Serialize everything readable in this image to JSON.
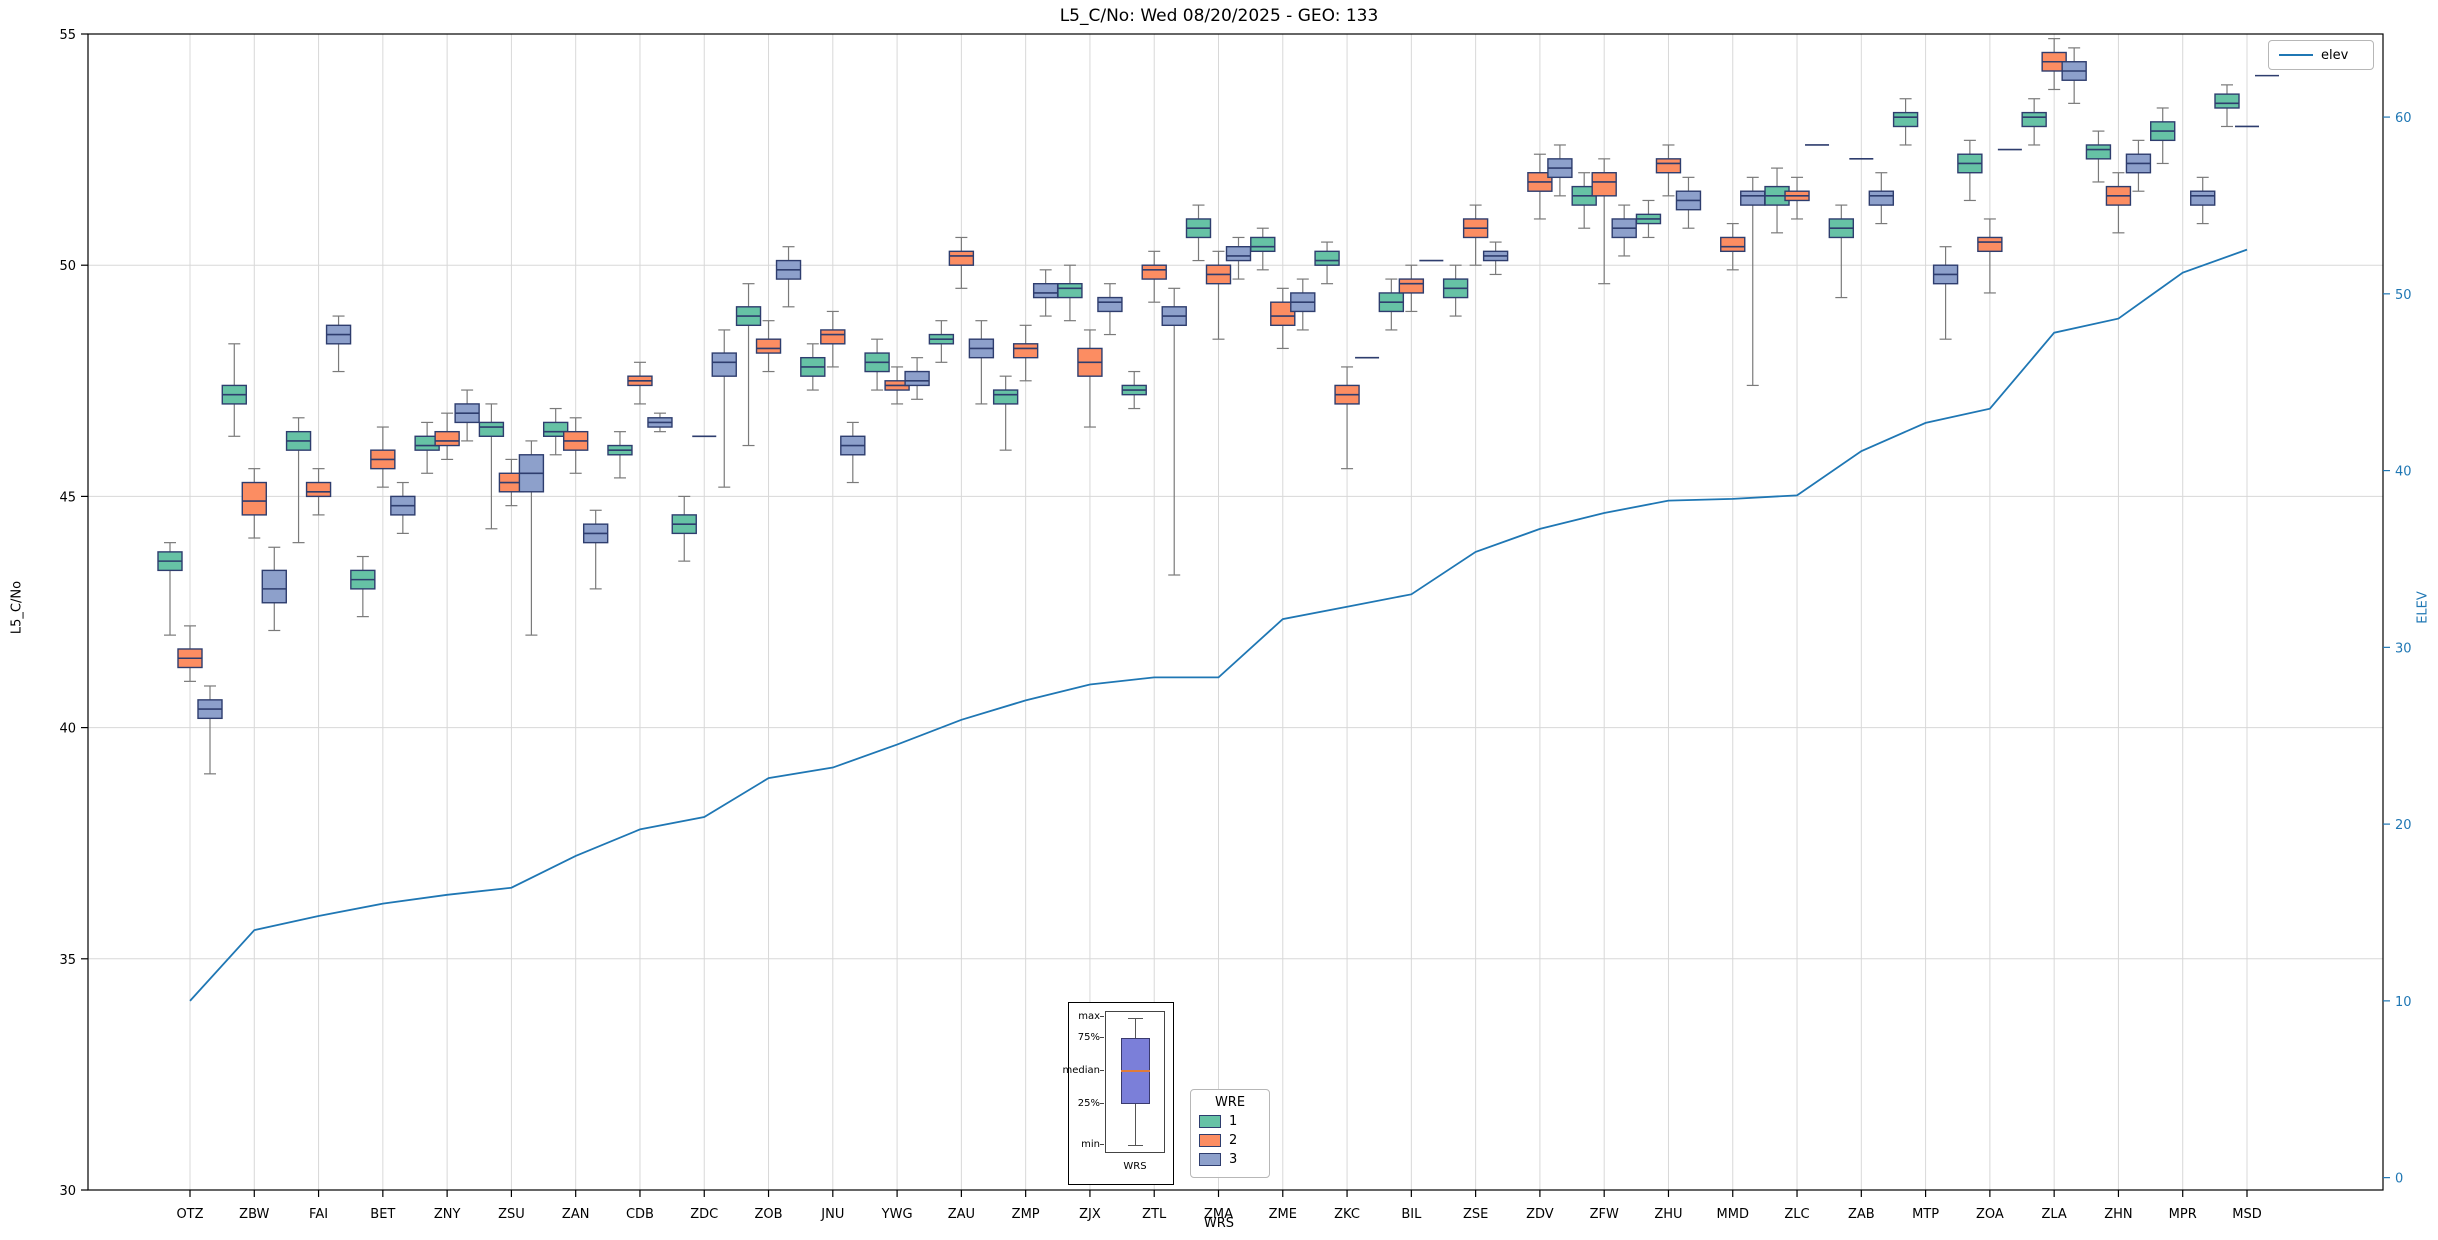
{
  "chart_data": {
    "type": "boxplot+line",
    "title": "L5_C/No: Wed 08/20/2025 - GEO: 133",
    "xlabel": "WRS",
    "ylabel": "L5_C/No",
    "y2label": "ELEV",
    "ylim": [
      30,
      55
    ],
    "y2lim": [
      -0.7,
      64.7
    ],
    "y_ticks": [
      30,
      35,
      40,
      45,
      50,
      55
    ],
    "y2_ticks": [
      0,
      10,
      20,
      30,
      40,
      50,
      60
    ],
    "grid": true,
    "legend_wre_title": "WRE",
    "box_edge_color": "#2e3d6e",
    "whisker_color": "#7a7a7a",
    "grid_color": "#d8d8d8",
    "wre_series": [
      {
        "name": "1",
        "color": "#66c2a5"
      },
      {
        "name": "2",
        "color": "#fc8d62"
      },
      {
        "name": "3",
        "color": "#8da0cb"
      }
    ],
    "categories": [
      "OTZ",
      "ZBW",
      "FAI",
      "BET",
      "ZNY",
      "ZSU",
      "ZAN",
      "CDB",
      "ZDC",
      "ZOB",
      "JNU",
      "YWG",
      "ZAU",
      "ZMP",
      "ZJX",
      "ZTL",
      "ZMA",
      "ZME",
      "ZKC",
      "BIL",
      "ZSE",
      "ZDV",
      "ZFW",
      "ZHU",
      "MMD",
      "ZLC",
      "ZAB",
      "MTP",
      "ZOA",
      "ZLA",
      "ZHN",
      "MPR",
      "MSD"
    ],
    "boxes_note": "per category: [WRE1, WRE2, WRE3]; each box = [whisker_low, q1, median, q3, whisker_high] in L5 C/No dB; null = not present; lo==hi means flat mark",
    "boxes": [
      [
        [
          42.0,
          43.4,
          43.6,
          43.8,
          44.0
        ],
        [
          41.0,
          41.3,
          41.5,
          41.7,
          42.2
        ],
        [
          39.0,
          40.2,
          40.4,
          40.6,
          40.9
        ]
      ],
      [
        [
          46.3,
          47.0,
          47.2,
          47.4,
          48.3
        ],
        [
          44.1,
          44.6,
          44.9,
          45.3,
          45.6
        ],
        [
          42.1,
          42.7,
          43.0,
          43.4,
          43.9
        ]
      ],
      [
        [
          44.0,
          46.0,
          46.2,
          46.4,
          46.7
        ],
        [
          44.6,
          45.0,
          45.1,
          45.3,
          45.6
        ],
        [
          47.7,
          48.3,
          48.5,
          48.7,
          48.9
        ]
      ],
      [
        [
          42.4,
          43.0,
          43.2,
          43.4,
          43.7
        ],
        [
          45.2,
          45.6,
          45.8,
          46.0,
          46.5
        ],
        [
          44.2,
          44.6,
          44.8,
          45.0,
          45.3
        ]
      ],
      [
        [
          45.5,
          46.0,
          46.1,
          46.3,
          46.6
        ],
        [
          45.8,
          46.1,
          46.2,
          46.4,
          46.8
        ],
        [
          46.2,
          46.6,
          46.8,
          47.0,
          47.3
        ]
      ],
      [
        [
          44.3,
          46.3,
          46.5,
          46.6,
          47.0
        ],
        [
          44.8,
          45.1,
          45.3,
          45.5,
          45.8
        ],
        [
          42.0,
          45.1,
          45.5,
          45.9,
          46.2
        ]
      ],
      [
        [
          45.9,
          46.3,
          46.4,
          46.6,
          46.9
        ],
        [
          45.5,
          46.0,
          46.2,
          46.4,
          46.7
        ],
        [
          43.0,
          44.0,
          44.2,
          44.4,
          44.7
        ]
      ],
      [
        [
          45.4,
          45.9,
          46.0,
          46.1,
          46.4
        ],
        [
          47.0,
          47.4,
          47.5,
          47.6,
          47.9
        ],
        [
          46.4,
          46.5,
          46.6,
          46.7,
          46.8
        ]
      ],
      [
        [
          43.6,
          44.2,
          44.4,
          44.6,
          45.0
        ],
        [
          46.3,
          46.3,
          46.3,
          46.3,
          46.3
        ],
        [
          45.2,
          47.6,
          47.9,
          48.1,
          48.6
        ]
      ],
      [
        [
          46.1,
          48.7,
          48.9,
          49.1,
          49.6
        ],
        [
          47.7,
          48.1,
          48.2,
          48.4,
          48.8
        ],
        [
          49.1,
          49.7,
          49.9,
          50.1,
          50.4
        ]
      ],
      [
        [
          47.3,
          47.6,
          47.8,
          48.0,
          48.3
        ],
        [
          47.8,
          48.3,
          48.5,
          48.6,
          49.0
        ],
        [
          45.3,
          45.9,
          46.1,
          46.3,
          46.6
        ]
      ],
      [
        [
          47.3,
          47.7,
          47.9,
          48.1,
          48.4
        ],
        [
          47.0,
          47.3,
          47.4,
          47.5,
          47.8
        ],
        [
          47.1,
          47.4,
          47.5,
          47.7,
          48.0
        ]
      ],
      [
        [
          47.9,
          48.3,
          48.4,
          48.5,
          48.8
        ],
        [
          49.5,
          50.0,
          50.2,
          50.3,
          50.6
        ],
        [
          47.0,
          48.0,
          48.2,
          48.4,
          48.8
        ]
      ],
      [
        [
          46.0,
          47.0,
          47.2,
          47.3,
          47.6
        ],
        [
          47.5,
          48.0,
          48.2,
          48.3,
          48.7
        ],
        [
          48.9,
          49.3,
          49.4,
          49.6,
          49.9
        ]
      ],
      [
        [
          48.8,
          49.3,
          49.5,
          49.6,
          50.0
        ],
        [
          46.5,
          47.6,
          47.9,
          48.2,
          48.6
        ],
        [
          48.5,
          49.0,
          49.2,
          49.3,
          49.6
        ]
      ],
      [
        [
          46.9,
          47.2,
          47.3,
          47.4,
          47.7
        ],
        [
          49.2,
          49.7,
          49.9,
          50.0,
          50.3
        ],
        [
          43.3,
          48.7,
          48.9,
          49.1,
          49.5
        ]
      ],
      [
        [
          50.1,
          50.6,
          50.8,
          51.0,
          51.3
        ],
        [
          48.4,
          49.6,
          49.8,
          50.0,
          50.3
        ],
        [
          49.7,
          50.1,
          50.2,
          50.4,
          50.6
        ]
      ],
      [
        [
          49.9,
          50.3,
          50.4,
          50.6,
          50.8
        ],
        [
          48.2,
          48.7,
          48.9,
          49.2,
          49.5
        ],
        [
          48.6,
          49.0,
          49.2,
          49.4,
          49.7
        ]
      ],
      [
        [
          49.6,
          50.0,
          50.1,
          50.3,
          50.5
        ],
        [
          45.6,
          47.0,
          47.2,
          47.4,
          47.8
        ],
        [
          48.0,
          48.0,
          48.0,
          48.0,
          48.0
        ]
      ],
      [
        [
          48.6,
          49.0,
          49.2,
          49.4,
          49.7
        ],
        [
          49.0,
          49.4,
          49.6,
          49.7,
          50.0
        ],
        [
          50.1,
          50.1,
          50.1,
          50.1,
          50.1
        ]
      ],
      [
        [
          48.9,
          49.3,
          49.5,
          49.7,
          50.0
        ],
        [
          50.0,
          50.6,
          50.8,
          51.0,
          51.3
        ],
        [
          49.8,
          50.1,
          50.2,
          50.3,
          50.5
        ]
      ],
      [
        null,
        [
          51.0,
          51.6,
          51.8,
          52.0,
          52.4
        ],
        [
          51.5,
          51.9,
          52.1,
          52.3,
          52.6
        ]
      ],
      [
        [
          50.8,
          51.3,
          51.5,
          51.7,
          52.0
        ],
        [
          49.6,
          51.5,
          51.8,
          52.0,
          52.3
        ],
        [
          50.2,
          50.6,
          50.8,
          51.0,
          51.3
        ]
      ],
      [
        [
          50.6,
          50.9,
          51.0,
          51.1,
          51.4
        ],
        [
          51.5,
          52.0,
          52.2,
          52.3,
          52.6
        ],
        [
          50.8,
          51.2,
          51.4,
          51.6,
          51.9
        ]
      ],
      [
        null,
        [
          49.9,
          50.3,
          50.4,
          50.6,
          50.9
        ],
        [
          47.4,
          51.3,
          51.5,
          51.6,
          51.9
        ]
      ],
      [
        [
          50.7,
          51.3,
          51.5,
          51.7,
          52.1
        ],
        [
          51.0,
          51.4,
          51.5,
          51.6,
          51.9
        ],
        [
          52.6,
          52.6,
          52.6,
          52.6,
          52.6
        ]
      ],
      [
        [
          49.3,
          50.6,
          50.8,
          51.0,
          51.3
        ],
        [
          52.3,
          52.3,
          52.3,
          52.3,
          52.3
        ],
        [
          50.9,
          51.3,
          51.5,
          51.6,
          52.0
        ]
      ],
      [
        [
          52.6,
          53.0,
          53.2,
          53.3,
          53.6
        ],
        null,
        [
          48.4,
          49.6,
          49.8,
          50.0,
          50.4
        ]
      ],
      [
        [
          51.4,
          52.0,
          52.2,
          52.4,
          52.7
        ],
        [
          49.4,
          50.3,
          50.5,
          50.6,
          51.0
        ],
        [
          52.5,
          52.5,
          52.5,
          52.5,
          52.5
        ]
      ],
      [
        [
          52.6,
          53.0,
          53.2,
          53.3,
          53.6
        ],
        [
          53.8,
          54.2,
          54.4,
          54.6,
          54.9
        ],
        [
          53.5,
          54.0,
          54.2,
          54.4,
          54.7
        ]
      ],
      [
        [
          51.8,
          52.3,
          52.5,
          52.6,
          52.9
        ],
        [
          50.7,
          51.3,
          51.5,
          51.7,
          52.0
        ],
        [
          51.6,
          52.0,
          52.2,
          52.4,
          52.7
        ]
      ],
      [
        [
          52.2,
          52.7,
          52.9,
          53.1,
          53.4
        ],
        null,
        [
          50.9,
          51.3,
          51.5,
          51.6,
          51.9
        ]
      ],
      [
        [
          53.0,
          53.4,
          53.5,
          53.7,
          53.9
        ],
        [
          53.0,
          53.0,
          53.0,
          53.0,
          53.0
        ],
        [
          54.1,
          54.1,
          54.1,
          54.1,
          54.1
        ]
      ]
    ],
    "elev_line": {
      "label": "elev",
      "color": "#1f77b4",
      "values": [
        10.0,
        14.0,
        14.8,
        15.5,
        16.0,
        16.4,
        18.2,
        19.7,
        20.4,
        22.6,
        23.2,
        24.5,
        25.9,
        27.0,
        27.9,
        28.3,
        28.3,
        31.6,
        32.3,
        33.0,
        35.4,
        36.7,
        37.6,
        38.3,
        38.4,
        38.6,
        41.1,
        42.7,
        43.5,
        47.8,
        48.6,
        51.2,
        52.5
      ]
    },
    "inset": {
      "labels": [
        "max",
        "75%",
        "median",
        "25%",
        "min"
      ],
      "xlabel": "WRS",
      "box_color": "#7b7fd9",
      "median_color": "#e07b39"
    }
  }
}
